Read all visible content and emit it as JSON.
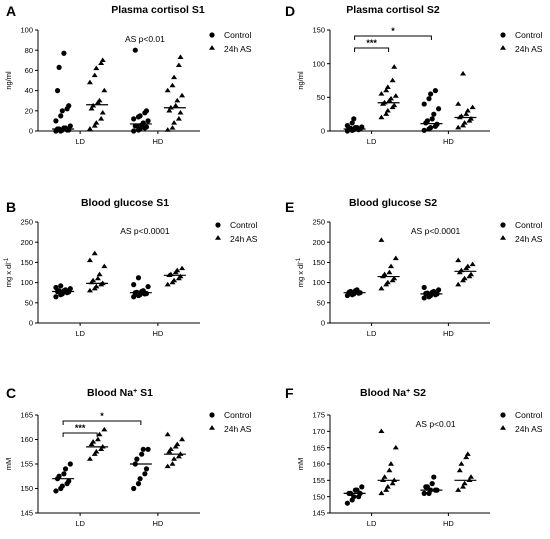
{
  "figure": {
    "legend_labels": [
      "Control",
      "24h AS"
    ],
    "series_color": "#000000"
  },
  "chart_data": [
    {
      "panel": "A",
      "type": "scatter",
      "title": "Plasma cortisol S1",
      "ylabel": "ng/ml",
      "ylim": [
        0,
        100
      ],
      "yticks": [
        "0",
        "20",
        "40",
        "60",
        "80",
        "100"
      ],
      "categories": [
        "LD",
        "HD"
      ],
      "annotation": "AS p<0.01",
      "significance": [],
      "series": [
        {
          "name": "Control",
          "marker": "circle",
          "values": [
            [
              0,
              0,
              1,
              1,
              1,
              2,
              2,
              3,
              3,
              5,
              10,
              15,
              20,
              22,
              25,
              40,
              63,
              77
            ],
            [
              0,
              1,
              2,
              3,
              4,
              5,
              5,
              6,
              8,
              10,
              12,
              14,
              15,
              18,
              20,
              80
            ]
          ],
          "medians": [
            2,
            7
          ]
        },
        {
          "name": "24h AS",
          "marker": "triangle",
          "values": [
            [
              2,
              5,
              8,
              12,
              18,
              22,
              25,
              28,
              30,
              40,
              48,
              55,
              62,
              67,
              70
            ],
            [
              1,
              3,
              8,
              12,
              18,
              20,
              23,
              25,
              30,
              35,
              40,
              45,
              53,
              65,
              73
            ]
          ],
          "medians": [
            26,
            23
          ]
        }
      ]
    },
    {
      "panel": "D",
      "type": "scatter",
      "title": "Plasma cortisol S2",
      "ylabel": "ng/ml",
      "ylim": [
        0,
        150
      ],
      "yticks": [
        "0",
        "50",
        "100",
        "150"
      ],
      "categories": [
        "LD",
        "HD"
      ],
      "annotation": "",
      "significance": [
        {
          "from": "LD-Control",
          "to": "LD-24h AS",
          "label": "***",
          "level": 0
        },
        {
          "from": "LD-Control",
          "to": "HD-Control",
          "label": "*",
          "level": 1
        }
      ],
      "series": [
        {
          "name": "Control",
          "marker": "circle",
          "values": [
            [
              0,
              1,
              2,
              2,
              3,
              3,
              4,
              5,
              5,
              6,
              8,
              12,
              18
            ],
            [
              1,
              3,
              5,
              7,
              10,
              12,
              15,
              18,
              25,
              33,
              40,
              48,
              55,
              60
            ]
          ],
          "medians": [
            3,
            11
          ]
        },
        {
          "name": "24h AS",
          "marker": "triangle",
          "values": [
            [
              20,
              25,
              30,
              35,
              38,
              40,
              42,
              45,
              48,
              52,
              55,
              60,
              65,
              75,
              95
            ],
            [
              5,
              8,
              12,
              15,
              18,
              20,
              22,
              25,
              30,
              35,
              40,
              85
            ]
          ],
          "medians": [
            42,
            20
          ]
        }
      ]
    },
    {
      "panel": "B",
      "type": "scatter",
      "title": "Blood glucose S1",
      "ylabel": "mg x dl-1",
      "ylim": [
        0,
        250
      ],
      "yticks": [
        "0",
        "50",
        "100",
        "150",
        "200",
        "250"
      ],
      "categories": [
        "LD",
        "HD"
      ],
      "annotation": "AS p<0.0001",
      "significance": [],
      "series": [
        {
          "name": "Control",
          "marker": "circle",
          "values": [
            [
              65,
              70,
              72,
              75,
              77,
              78,
              80,
              80,
              82,
              85,
              88,
              92
            ],
            [
              65,
              68,
              70,
              72,
              73,
              75,
              76,
              78,
              80,
              90,
              95,
              112
            ]
          ],
          "medians": [
            78,
            75
          ]
        },
        {
          "name": "24h AS",
          "marker": "triangle",
          "values": [
            [
              80,
              85,
              90,
              95,
              98,
              100,
              105,
              110,
              120,
              140,
              155,
              172
            ],
            [
              95,
              100,
              105,
              110,
              115,
              118,
              120,
              125,
              130,
              135
            ]
          ],
          "medians": [
            98,
            118
          ]
        }
      ]
    },
    {
      "panel": "E",
      "type": "scatter",
      "title": "Blood glucose S2",
      "ylabel": "mg x dl-1",
      "ylim": [
        0,
        250
      ],
      "yticks": [
        "0",
        "50",
        "100",
        "150",
        "200",
        "250"
      ],
      "categories": [
        "LD",
        "HD"
      ],
      "annotation": "AS p<0.0001",
      "significance": [],
      "series": [
        {
          "name": "Control",
          "marker": "circle",
          "values": [
            [
              68,
              70,
              72,
              74,
              75,
              76,
              78,
              80,
              82
            ],
            [
              62,
              65,
              68,
              70,
              72,
              73,
              74,
              76,
              78,
              82,
              88
            ]
          ],
          "medians": [
            75,
            72
          ]
        },
        {
          "name": "24h AS",
          "marker": "triangle",
          "values": [
            [
              85,
              95,
              100,
              105,
              110,
              115,
              120,
              125,
              140,
              160,
              205
            ],
            [
              95,
              105,
              110,
              115,
              120,
              125,
              130,
              135,
              140,
              145,
              155
            ]
          ],
          "medians": [
            115,
            128
          ]
        }
      ]
    },
    {
      "panel": "C",
      "type": "scatter",
      "title": "Blood Na+ S1",
      "ylabel": "mM",
      "ylim": [
        145,
        165
      ],
      "yticks": [
        "145",
        "150",
        "155",
        "160",
        "165"
      ],
      "categories": [
        "LD",
        "HD"
      ],
      "annotation": "",
      "significance": [
        {
          "from": "LD-Control",
          "to": "LD-24h AS",
          "label": "***",
          "level": 0
        },
        {
          "from": "LD-Control",
          "to": "HD-Control",
          "label": "*",
          "level": 1
        }
      ],
      "series": [
        {
          "name": "Control",
          "marker": "circle",
          "values": [
            [
              149.5,
              150,
              150.5,
              151,
              151.5,
              152,
              152.5,
              153,
              154,
              155
            ],
            [
              150,
              151,
              152,
              153,
              154,
              155,
              156,
              157,
              158,
              158
            ]
          ],
          "medians": [
            152,
            155
          ]
        },
        {
          "name": "24h AS",
          "marker": "triangle",
          "values": [
            [
              156,
              157,
              157.5,
              158,
              158.5,
              159,
              159.5,
              160,
              161,
              162
            ],
            [
              154.5,
              155,
              156,
              156.5,
              157,
              157.5,
              158,
              158.5,
              159,
              160,
              161
            ]
          ],
          "medians": [
            158.5,
            157
          ]
        }
      ]
    },
    {
      "panel": "F",
      "type": "scatter",
      "title": "Blood Na+ S2",
      "ylabel": "mM",
      "ylim": [
        145,
        175
      ],
      "yticks": [
        "145",
        "150",
        "155",
        "160",
        "165",
        "170",
        "175"
      ],
      "categories": [
        "LD",
        "HD"
      ],
      "annotation": "AS p<0.01",
      "significance": [],
      "series": [
        {
          "name": "Control",
          "marker": "circle",
          "values": [
            [
              148,
              149,
              150,
              150,
              151,
              151,
              151,
              152,
              152,
              153
            ],
            [
              151,
              151,
              152,
              152,
              152,
              153,
              153,
              154,
              156
            ]
          ],
          "medians": [
            151,
            152
          ]
        },
        {
          "name": "24h AS",
          "marker": "triangle",
          "values": [
            [
              151,
              152,
              153,
              154,
              155,
              155,
              156,
              158,
              160,
              165,
              170
            ],
            [
              152,
              153,
              154,
              155,
              156,
              158,
              160,
              162,
              163
            ]
          ],
          "medians": [
            155,
            155
          ]
        }
      ]
    }
  ]
}
